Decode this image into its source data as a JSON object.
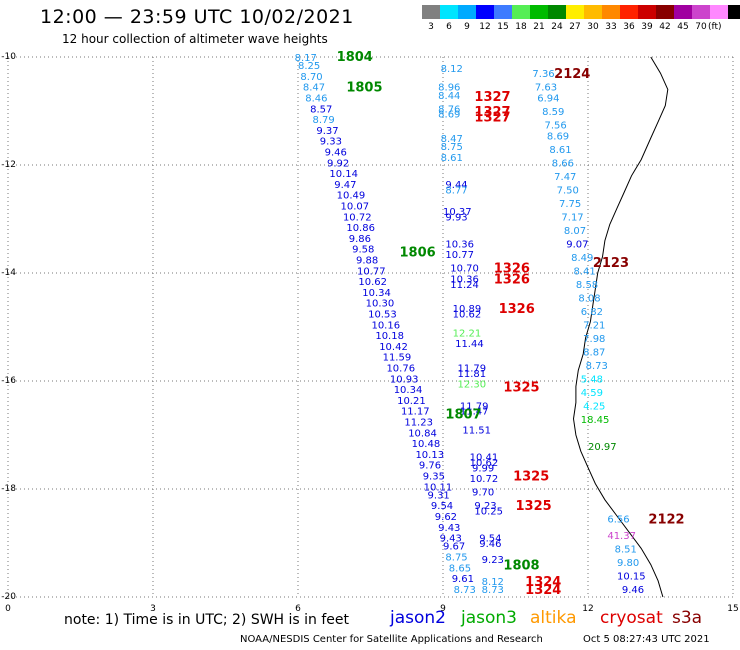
{
  "title": "12:00 — 23:59 UTC 10/02/2021",
  "subtitle": "12 hour collection of altimeter wave heights",
  "colorbar": {
    "colors": [
      "#808080",
      "#00e5ff",
      "#00aaff",
      "#0000ff",
      "#3e7bff",
      "#55ee55",
      "#00bb00",
      "#008800",
      "#ffee00",
      "#ffbb00",
      "#ff8800",
      "#ff2200",
      "#cc0000",
      "#880000",
      "#a000a0",
      "#cc44cc",
      "#ff88ff",
      "#000000"
    ],
    "labels": [
      "3",
      "6",
      "9",
      "12",
      "15",
      "18",
      "21",
      "24",
      "27",
      "30",
      "33",
      "36",
      "39",
      "42",
      "45",
      "70"
    ],
    "unit": "(ft)"
  },
  "axes": {
    "y_labels": [
      "-10",
      "-12",
      "-14",
      "-16",
      "-18",
      "-20"
    ],
    "x_labels": [
      "0",
      "3",
      "6",
      "9",
      "12",
      "15"
    ]
  },
  "note": "note: 1) Time is in UTC; 2) SWH is in feet",
  "legend": [
    {
      "name": "jason2",
      "color": "#0000dd"
    },
    {
      "name": "jason3",
      "color": "#00aa00"
    },
    {
      "name": "altika",
      "color": "#ff9900"
    },
    {
      "name": "cryosat",
      "color": "#dd0000"
    },
    {
      "name": "s3a",
      "color": "#880000"
    }
  ],
  "footer_left": "NOAA/NESDIS Center for Satellite Applications and Research",
  "footer_right": "Oct  5 08:27:43 UTC 2021",
  "chart_data": {
    "type": "scatter",
    "xlim": [
      0,
      15
    ],
    "ylim": [
      -20,
      -10
    ],
    "time_labels": [
      {
        "text": "1804",
        "x": 6.8,
        "y": -9.98,
        "color": "#008800"
      },
      {
        "text": "1805",
        "x": 7.0,
        "y": -10.55,
        "color": "#008800"
      },
      {
        "text": "1806",
        "x": 8.1,
        "y": -13.6,
        "color": "#008800"
      },
      {
        "text": "1807",
        "x": 9.05,
        "y": -16.6,
        "color": "#008800"
      },
      {
        "text": "1808",
        "x": 10.25,
        "y": -19.4,
        "color": "#008800"
      },
      {
        "text": "2124",
        "x": 11.3,
        "y": -10.3,
        "color": "#880000"
      },
      {
        "text": "2123",
        "x": 12.1,
        "y": -13.8,
        "color": "#880000"
      },
      {
        "text": "2122",
        "x": 13.25,
        "y": -18.55,
        "color": "#880000"
      },
      {
        "text": "1327",
        "x": 9.65,
        "y": -10.72,
        "color": "#dd0000"
      },
      {
        "text": "1327",
        "x": 9.65,
        "y": -11.0,
        "color": "#dd0000"
      },
      {
        "text": "1327",
        "x": 9.65,
        "y": -11.1,
        "color": "#dd0000"
      },
      {
        "text": "1326",
        "x": 10.05,
        "y": -13.9,
        "color": "#dd0000"
      },
      {
        "text": "1326",
        "x": 10.05,
        "y": -14.1,
        "color": "#dd0000"
      },
      {
        "text": "1326",
        "x": 10.15,
        "y": -14.65,
        "color": "#dd0000"
      },
      {
        "text": "1325",
        "x": 10.25,
        "y": -16.1,
        "color": "#dd0000"
      },
      {
        "text": "1325",
        "x": 10.45,
        "y": -17.75,
        "color": "#dd0000"
      },
      {
        "text": "1325",
        "x": 10.5,
        "y": -18.3,
        "color": "#dd0000"
      },
      {
        "text": "1324",
        "x": 10.7,
        "y": -19.7,
        "color": "#dd0000"
      },
      {
        "text": "1324",
        "x": 10.7,
        "y": -19.85,
        "color": "#dd0000"
      }
    ],
    "swh_points": [
      {
        "v": "8.17",
        "x": 5.93,
        "y": -10.0,
        "c": "#2299ee"
      },
      {
        "v": "8.25",
        "x": 6.0,
        "y": -10.15,
        "c": "#2299ee"
      },
      {
        "v": "8.70",
        "x": 6.05,
        "y": -10.35,
        "c": "#2299ee"
      },
      {
        "v": "8.47",
        "x": 6.1,
        "y": -10.55,
        "c": "#2299ee"
      },
      {
        "v": "8.46",
        "x": 6.15,
        "y": -10.75,
        "c": "#2299ee"
      },
      {
        "v": "8.57",
        "x": 6.25,
        "y": -10.95,
        "c": "#0000dd"
      },
      {
        "v": "8.79",
        "x": 6.3,
        "y": -11.15,
        "c": "#2299ee"
      },
      {
        "v": "9.37",
        "x": 6.38,
        "y": -11.35,
        "c": "#0000dd"
      },
      {
        "v": "9.33",
        "x": 6.45,
        "y": -11.55,
        "c": "#0000dd"
      },
      {
        "v": "9.46",
        "x": 6.55,
        "y": -11.75,
        "c": "#0000dd"
      },
      {
        "v": "9.92",
        "x": 6.6,
        "y": -11.95,
        "c": "#0000dd"
      },
      {
        "v": "10.14",
        "x": 6.65,
        "y": -12.15,
        "c": "#0000dd"
      },
      {
        "v": "9.47",
        "x": 6.75,
        "y": -12.35,
        "c": "#0000dd"
      },
      {
        "v": "10.49",
        "x": 6.8,
        "y": -12.55,
        "c": "#0000dd"
      },
      {
        "v": "10.07",
        "x": 6.88,
        "y": -12.75,
        "c": "#0000dd"
      },
      {
        "v": "10.72",
        "x": 6.93,
        "y": -12.95,
        "c": "#0000dd"
      },
      {
        "v": "10.86",
        "x": 7.0,
        "y": -13.15,
        "c": "#0000dd"
      },
      {
        "v": "9.86",
        "x": 7.05,
        "y": -13.35,
        "c": "#0000dd"
      },
      {
        "v": "9.58",
        "x": 7.12,
        "y": -13.55,
        "c": "#0000dd"
      },
      {
        "v": "9.88",
        "x": 7.2,
        "y": -13.75,
        "c": "#0000dd"
      },
      {
        "v": "10.77",
        "x": 7.22,
        "y": -13.95,
        "c": "#0000dd"
      },
      {
        "v": "10.62",
        "x": 7.25,
        "y": -14.15,
        "c": "#0000dd"
      },
      {
        "v": "10.34",
        "x": 7.33,
        "y": -14.35,
        "c": "#0000dd"
      },
      {
        "v": "10.30",
        "x": 7.4,
        "y": -14.55,
        "c": "#0000dd"
      },
      {
        "v": "10.53",
        "x": 7.45,
        "y": -14.75,
        "c": "#0000dd"
      },
      {
        "v": "10.16",
        "x": 7.52,
        "y": -14.95,
        "c": "#0000dd"
      },
      {
        "v": "10.18",
        "x": 7.6,
        "y": -15.15,
        "c": "#0000dd"
      },
      {
        "v": "10.42",
        "x": 7.68,
        "y": -15.35,
        "c": "#0000dd"
      },
      {
        "v": "11.59",
        "x": 7.75,
        "y": -15.55,
        "c": "#0000dd"
      },
      {
        "v": "10.76",
        "x": 7.83,
        "y": -15.75,
        "c": "#0000dd"
      },
      {
        "v": "10.93",
        "x": 7.9,
        "y": -15.95,
        "c": "#0000dd"
      },
      {
        "v": "10.34",
        "x": 7.98,
        "y": -16.15,
        "c": "#0000dd"
      },
      {
        "v": "10.21",
        "x": 8.05,
        "y": -16.35,
        "c": "#0000dd"
      },
      {
        "v": "11.17",
        "x": 8.13,
        "y": -16.55,
        "c": "#0000dd"
      },
      {
        "v": "11.23",
        "x": 8.2,
        "y": -16.75,
        "c": "#0000dd"
      },
      {
        "v": "10.84",
        "x": 8.28,
        "y": -16.95,
        "c": "#0000dd"
      },
      {
        "v": "10.48",
        "x": 8.35,
        "y": -17.15,
        "c": "#0000dd"
      },
      {
        "v": "10.13",
        "x": 8.43,
        "y": -17.35,
        "c": "#0000dd"
      },
      {
        "v": "9.76",
        "x": 8.5,
        "y": -17.55,
        "c": "#0000dd"
      },
      {
        "v": "9.35",
        "x": 8.58,
        "y": -17.75,
        "c": "#0000dd"
      },
      {
        "v": "10.11",
        "x": 8.6,
        "y": -17.95,
        "c": "#0000dd"
      },
      {
        "v": "9.31",
        "x": 8.68,
        "y": -18.1,
        "c": "#0000dd"
      },
      {
        "v": "9.54",
        "x": 8.75,
        "y": -18.3,
        "c": "#0000dd"
      },
      {
        "v": "9.62",
        "x": 8.83,
        "y": -18.5,
        "c": "#0000dd"
      },
      {
        "v": "9.43",
        "x": 8.9,
        "y": -18.7,
        "c": "#0000dd"
      },
      {
        "v": "9.43",
        "x": 8.93,
        "y": -18.9,
        "c": "#0000dd"
      },
      {
        "v": "9.67",
        "x": 9.0,
        "y": -19.05,
        "c": "#0000dd"
      },
      {
        "v": "8.75",
        "x": 9.05,
        "y": -19.25,
        "c": "#2299ee"
      },
      {
        "v": "8.65",
        "x": 9.12,
        "y": -19.45,
        "c": "#2299ee"
      },
      {
        "v": "9.61",
        "x": 9.18,
        "y": -19.65,
        "c": "#0000dd"
      },
      {
        "v": "8.73",
        "x": 9.22,
        "y": -19.85,
        "c": "#2299ee"
      },
      {
        "v": "8.12",
        "x": 8.95,
        "y": -10.2,
        "c": "#2299ee"
      },
      {
        "v": "8.96",
        "x": 8.9,
        "y": -10.55,
        "c": "#2299ee"
      },
      {
        "v": "8.44",
        "x": 8.9,
        "y": -10.7,
        "c": "#2299ee"
      },
      {
        "v": "8.76",
        "x": 8.9,
        "y": -10.95,
        "c": "#2299ee"
      },
      {
        "v": "8.69",
        "x": 8.9,
        "y": -11.05,
        "c": "#2299ee"
      },
      {
        "v": "8.47",
        "x": 8.95,
        "y": -11.5,
        "c": "#2299ee"
      },
      {
        "v": "8.75",
        "x": 8.95,
        "y": -11.65,
        "c": "#2299ee"
      },
      {
        "v": "8.61",
        "x": 8.95,
        "y": -11.85,
        "c": "#2299ee"
      },
      {
        "v": "9.44",
        "x": 9.05,
        "y": -12.35,
        "c": "#0000dd"
      },
      {
        "v": "8.77",
        "x": 9.05,
        "y": -12.45,
        "c": "#2299ee"
      },
      {
        "v": "10.37",
        "x": 9.0,
        "y": -12.85,
        "c": "#0000dd"
      },
      {
        "v": "9.93",
        "x": 9.05,
        "y": -12.95,
        "c": "#0000dd"
      },
      {
        "v": "10.36",
        "x": 9.05,
        "y": -13.45,
        "c": "#0000dd"
      },
      {
        "v": "10.77",
        "x": 9.05,
        "y": -13.65,
        "c": "#0000dd"
      },
      {
        "v": "10.70",
        "x": 9.15,
        "y": -13.9,
        "c": "#0000dd"
      },
      {
        "v": "10.36",
        "x": 9.15,
        "y": -14.1,
        "c": "#0000dd"
      },
      {
        "v": "11.24",
        "x": 9.15,
        "y": -14.2,
        "c": "#0000dd"
      },
      {
        "v": "10.89",
        "x": 9.2,
        "y": -14.65,
        "c": "#0000dd"
      },
      {
        "v": "10.62",
        "x": 9.2,
        "y": -14.75,
        "c": "#0000dd"
      },
      {
        "v": "12.21",
        "x": 9.2,
        "y": -15.1,
        "c": "#55ee55"
      },
      {
        "v": "11.44",
        "x": 9.25,
        "y": -15.3,
        "c": "#0000dd"
      },
      {
        "v": "11.79",
        "x": 9.3,
        "y": -15.75,
        "c": "#0000dd"
      },
      {
        "v": "11.81",
        "x": 9.3,
        "y": -15.85,
        "c": "#0000dd"
      },
      {
        "v": "12.30",
        "x": 9.3,
        "y": -16.05,
        "c": "#55ee55"
      },
      {
        "v": "11.79",
        "x": 9.35,
        "y": -16.45,
        "c": "#0000dd"
      },
      {
        "v": "11.47",
        "x": 9.35,
        "y": -16.55,
        "c": "#0000dd"
      },
      {
        "v": "11.51",
        "x": 9.4,
        "y": -16.9,
        "c": "#0000dd"
      },
      {
        "v": "10.41",
        "x": 9.55,
        "y": -17.4,
        "c": "#0000dd"
      },
      {
        "v": "10.62",
        "x": 9.55,
        "y": -17.5,
        "c": "#0000dd"
      },
      {
        "v": "9.99",
        "x": 9.6,
        "y": -17.6,
        "c": "#0000dd"
      },
      {
        "v": "10.72",
        "x": 9.55,
        "y": -17.8,
        "c": "#0000dd"
      },
      {
        "v": "9.70",
        "x": 9.6,
        "y": -18.05,
        "c": "#0000dd"
      },
      {
        "v": "9.23",
        "x": 9.65,
        "y": -18.3,
        "c": "#0000dd"
      },
      {
        "v": "10.25",
        "x": 9.65,
        "y": -18.4,
        "c": "#0000dd"
      },
      {
        "v": "9.54",
        "x": 9.75,
        "y": -18.9,
        "c": "#0000dd"
      },
      {
        "v": "9.46",
        "x": 9.75,
        "y": -19.0,
        "c": "#0000dd"
      },
      {
        "v": "9.23",
        "x": 9.8,
        "y": -19.3,
        "c": "#0000dd"
      },
      {
        "v": "8.12",
        "x": 9.8,
        "y": -19.7,
        "c": "#2299ee"
      },
      {
        "v": "8.73",
        "x": 9.8,
        "y": -19.85,
        "c": "#2299ee"
      },
      {
        "v": "7.36",
        "x": 10.85,
        "y": -10.3,
        "c": "#2299ee"
      },
      {
        "v": "7.63",
        "x": 10.9,
        "y": -10.55,
        "c": "#2299ee"
      },
      {
        "v": "6.94",
        "x": 10.95,
        "y": -10.75,
        "c": "#2299ee"
      },
      {
        "v": "8.59",
        "x": 11.05,
        "y": -11.0,
        "c": "#2299ee"
      },
      {
        "v": "7.56",
        "x": 11.1,
        "y": -11.25,
        "c": "#2299ee"
      },
      {
        "v": "8.69",
        "x": 11.15,
        "y": -11.45,
        "c": "#2299ee"
      },
      {
        "v": "8.61",
        "x": 11.2,
        "y": -11.7,
        "c": "#2299ee"
      },
      {
        "v": "8.66",
        "x": 11.25,
        "y": -11.95,
        "c": "#2299ee"
      },
      {
        "v": "7.47",
        "x": 11.3,
        "y": -12.2,
        "c": "#2299ee"
      },
      {
        "v": "7.50",
        "x": 11.35,
        "y": -12.45,
        "c": "#2299ee"
      },
      {
        "v": "7.75",
        "x": 11.4,
        "y": -12.7,
        "c": "#2299ee"
      },
      {
        "v": "7.17",
        "x": 11.45,
        "y": -12.95,
        "c": "#2299ee"
      },
      {
        "v": "8.07",
        "x": 11.5,
        "y": -13.2,
        "c": "#2299ee"
      },
      {
        "v": "9.07",
        "x": 11.55,
        "y": -13.45,
        "c": "#0000dd"
      },
      {
        "v": "8.49",
        "x": 11.65,
        "y": -13.7,
        "c": "#2299ee"
      },
      {
        "v": "8.41",
        "x": 11.7,
        "y": -13.95,
        "c": "#2299ee"
      },
      {
        "v": "8.58",
        "x": 11.75,
        "y": -14.2,
        "c": "#2299ee"
      },
      {
        "v": "8.08",
        "x": 11.8,
        "y": -14.45,
        "c": "#2299ee"
      },
      {
        "v": "6.82",
        "x": 11.85,
        "y": -14.7,
        "c": "#2299ee"
      },
      {
        "v": "7.21",
        "x": 11.9,
        "y": -14.95,
        "c": "#2299ee"
      },
      {
        "v": "7.98",
        "x": 11.9,
        "y": -15.2,
        "c": "#2299ee"
      },
      {
        "v": "8.87",
        "x": 11.9,
        "y": -15.45,
        "c": "#2299ee"
      },
      {
        "v": "8.73",
        "x": 11.95,
        "y": -15.7,
        "c": "#2299ee"
      },
      {
        "v": "5.48",
        "x": 11.85,
        "y": -15.95,
        "c": "#00e5ff"
      },
      {
        "v": "4.59",
        "x": 11.85,
        "y": -16.2,
        "c": "#00e5ff"
      },
      {
        "v": "4.25",
        "x": 11.9,
        "y": -16.45,
        "c": "#00e5ff"
      },
      {
        "v": "18.45",
        "x": 11.85,
        "y": -16.7,
        "c": "#00bb00"
      },
      {
        "v": "20.97",
        "x": 12.0,
        "y": -17.2,
        "c": "#008800"
      },
      {
        "v": "6.56",
        "x": 12.4,
        "y": -18.55,
        "c": "#2299ee"
      },
      {
        "v": "41.37",
        "x": 12.4,
        "y": -18.85,
        "c": "#cc44cc"
      },
      {
        "v": "8.51",
        "x": 12.55,
        "y": -19.1,
        "c": "#2299ee"
      },
      {
        "v": "9.80",
        "x": 12.6,
        "y": -19.35,
        "c": "#2299ee"
      },
      {
        "v": "10.15",
        "x": 12.6,
        "y": -19.6,
        "c": "#0000dd"
      },
      {
        "v": "9.46",
        "x": 12.7,
        "y": -19.85,
        "c": "#0000dd"
      }
    ],
    "coastline": [
      [
        13.3,
        -10.0
      ],
      [
        13.5,
        -10.3
      ],
      [
        13.65,
        -10.6
      ],
      [
        13.6,
        -10.9
      ],
      [
        13.45,
        -11.2
      ],
      [
        13.3,
        -11.5
      ],
      [
        13.1,
        -11.9
      ],
      [
        12.9,
        -12.2
      ],
      [
        12.75,
        -12.5
      ],
      [
        12.6,
        -12.8
      ],
      [
        12.45,
        -13.1
      ],
      [
        12.35,
        -13.4
      ],
      [
        12.3,
        -13.7
      ],
      [
        12.2,
        -14.0
      ],
      [
        12.15,
        -14.3
      ],
      [
        12.1,
        -14.6
      ],
      [
        12.05,
        -14.9
      ],
      [
        11.95,
        -15.2
      ],
      [
        11.9,
        -15.5
      ],
      [
        11.8,
        -15.8
      ],
      [
        11.75,
        -16.1
      ],
      [
        11.75,
        -16.4
      ],
      [
        11.7,
        -16.7
      ],
      [
        11.75,
        -17.0
      ],
      [
        11.85,
        -17.3
      ],
      [
        12.0,
        -17.6
      ],
      [
        12.15,
        -17.9
      ],
      [
        12.35,
        -18.2
      ],
      [
        12.6,
        -18.5
      ],
      [
        12.85,
        -18.8
      ],
      [
        13.1,
        -19.1
      ],
      [
        13.3,
        -19.4
      ],
      [
        13.45,
        -19.7
      ],
      [
        13.55,
        -20.0
      ]
    ]
  }
}
